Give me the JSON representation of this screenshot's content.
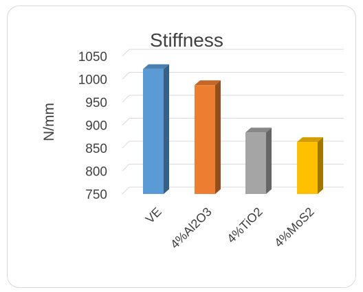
{
  "chart_data": {
    "type": "bar",
    "style": "3d-column",
    "title": "Stiffness",
    "ylabel": "N/mm",
    "xlabel": "",
    "categories": [
      "VE",
      "4%Al2O3",
      "4%TiO2",
      "4%MoS2"
    ],
    "values": [
      1022,
      987,
      884,
      863
    ],
    "colors": [
      "#5B9BD5",
      "#ED7D31",
      "#A5A5A5",
      "#FFC000"
    ],
    "ylim": [
      750,
      1050
    ],
    "yticks": [
      750,
      800,
      850,
      900,
      950,
      1000,
      1050
    ],
    "grid": true,
    "legend": "none"
  }
}
